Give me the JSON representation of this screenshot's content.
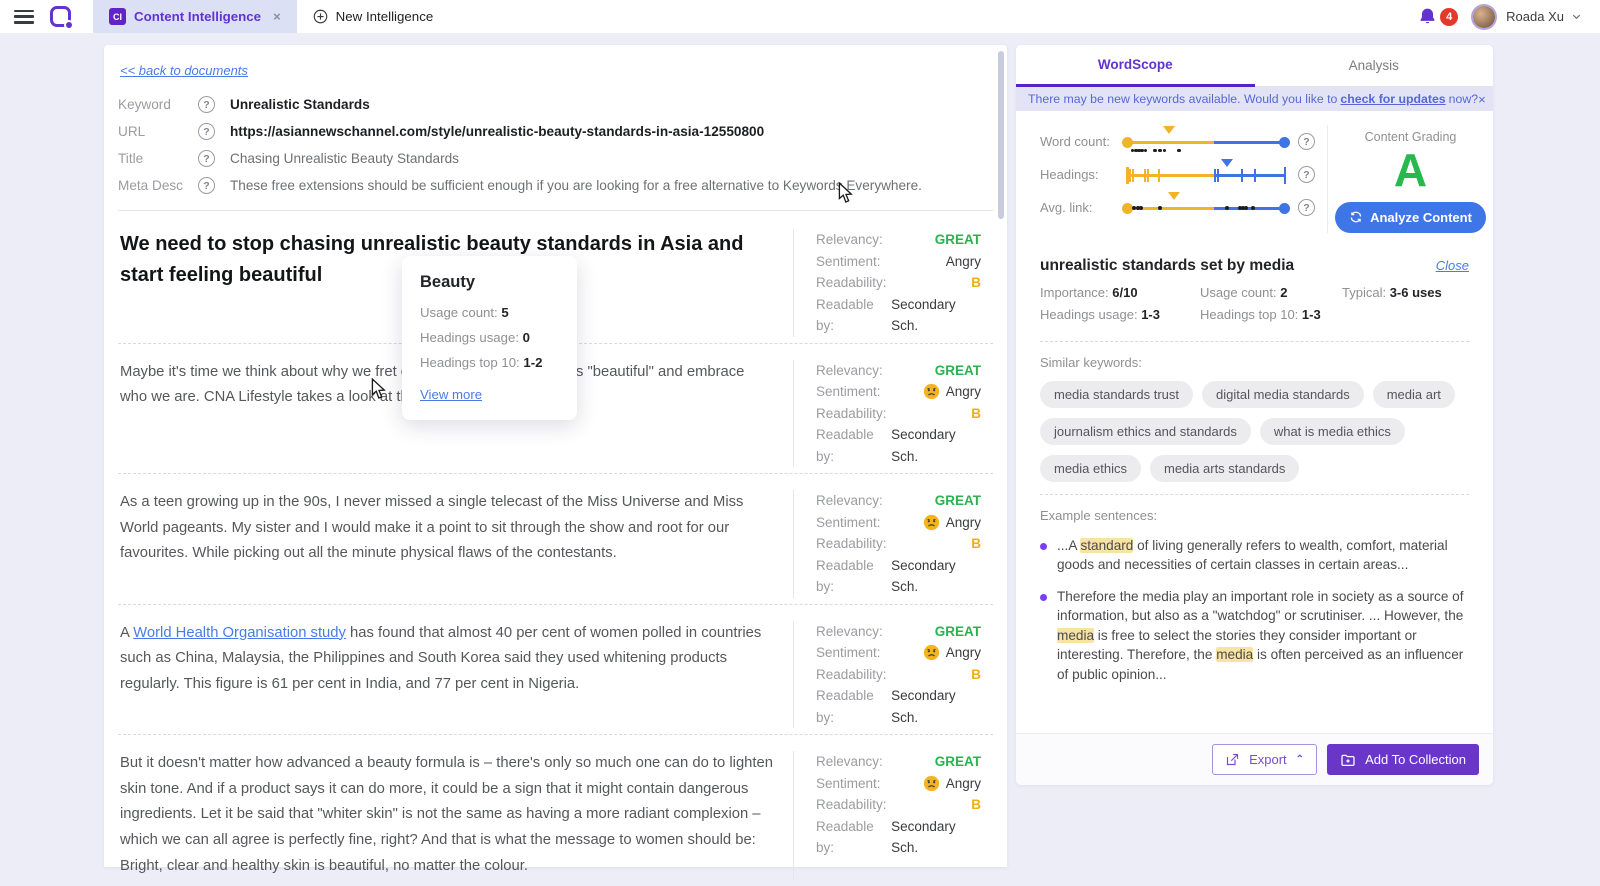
{
  "topbar": {
    "tab_ci_badge": "CI",
    "tab_ci_label": "Content Intelligence",
    "tab_ci_close": "×",
    "tab_new_label": "New Intelligence",
    "notification_count": "4",
    "user_name": "Roada Xu"
  },
  "document": {
    "back_link": "<< back to documents",
    "meta_rows": [
      {
        "label": "Keyword",
        "value": "Unrealistic Standards",
        "bold": true
      },
      {
        "label": "URL",
        "value": "https://asiannewschannel.com/style/unrealistic-beauty-standards-in-asia-12550800",
        "bold": true
      },
      {
        "label": "Title",
        "value": "Chasing Unrealistic Beauty Standards",
        "bold": false
      },
      {
        "label": "Meta Desc",
        "value": "These free extensions should be sufficient enough if you are looking for a free alternative to Keywords Everywhere.",
        "bold": false
      }
    ],
    "metric_labels": {
      "relevancy": "Relevancy:",
      "sentiment": "Sentiment:",
      "readability": "Readability:",
      "readable_by": "Readable by:"
    },
    "rows": [
      {
        "kind": "heading",
        "segments": [
          {
            "t": "We need to stop chasing unrealistic beauty standards in Asia and start feeling beautiful"
          }
        ],
        "metrics": {
          "relevancy": "GREAT",
          "sentiment": "Angry",
          "sentiment_emoji": false,
          "readability": "B",
          "readable_by": "Secondary Sch."
        }
      },
      {
        "kind": "paragraph",
        "segments": [
          {
            "t": "Maybe it's time we think about why we fret over what society deems as \"beautiful\" and embrace who we are. CNA Lifestyle takes a look at the "
          },
          {
            "t": "beauty",
            "hl": true
          },
          {
            "t": " rat race."
          }
        ],
        "metrics": {
          "relevancy": "GREAT",
          "sentiment": "Angry",
          "sentiment_emoji": true,
          "readability": "B",
          "readable_by": "Secondary Sch."
        }
      },
      {
        "kind": "paragraph",
        "segments": [
          {
            "t": "As a teen growing up in the 90s, I never missed a single telecast of the Miss Universe and Miss World pageants. My sister and I would make it a point to sit through the show and root for our favourites. While picking out all the minute physical flaws of the contestants."
          }
        ],
        "metrics": {
          "relevancy": "GREAT",
          "sentiment": "Angry",
          "sentiment_emoji": true,
          "readability": "B",
          "readable_by": "Secondary Sch."
        }
      },
      {
        "kind": "paragraph",
        "segments": [
          {
            "t": "A "
          },
          {
            "t": "World Health Organisation study",
            "link": true
          },
          {
            "t": " has found that almost 40 per cent of women polled in countries such as China, Malaysia, the Philippines and South Korea said they used whitening products regularly. This figure is 61 per cent in India, and 77 per cent in Nigeria."
          }
        ],
        "metrics": {
          "relevancy": "GREAT",
          "sentiment": "Angry",
          "sentiment_emoji": true,
          "readability": "B",
          "readable_by": "Secondary Sch."
        }
      },
      {
        "kind": "paragraph",
        "segments": [
          {
            "t": "But it doesn't matter how advanced a beauty formula is – there's only so much one can do to lighten skin tone. And if a product says it can do more, it could be a sign that it might contain dangerous ingredients. Let it be said that \"whiter skin\" is not the same as having a more radiant complexion – which we can all agree is perfectly fine, right? And that is what the message to women should be: Bright, clear and healthy skin is beautiful, no matter the colour."
          }
        ],
        "metrics": {
          "relevancy": "GREAT",
          "sentiment": "Angry",
          "sentiment_emoji": true,
          "readability": "B",
          "readable_by": "Secondary Sch."
        }
      }
    ]
  },
  "tooltip": {
    "title": "Beauty",
    "rows": [
      {
        "label": "Usage count: ",
        "value": "5"
      },
      {
        "label": "Headings usage: ",
        "value": "0"
      },
      {
        "label": "Headings top 10: ",
        "value": "1-2"
      }
    ],
    "link": "View more"
  },
  "wordscope": {
    "tab_active": "WordScope",
    "tab_inactive": "Analysis",
    "banner": {
      "text_before": "There may be new keywords available. Would you like to",
      "link": "check for updates",
      "text_after": "now?",
      "close": "×"
    },
    "sliders": [
      {
        "label": "Word count:",
        "marker_pct": 27,
        "marker_color": "gold",
        "split_pct": 55,
        "left_cap": "dot",
        "right_cap": "dot",
        "ticks": [],
        "line_dots": [],
        "under_dots": [
          3,
          5,
          7,
          9,
          11,
          17,
          20,
          23,
          32
        ]
      },
      {
        "label": "Headings:",
        "marker_pct": 63,
        "marker_color": "blue",
        "split_pct": 55,
        "left_cap": "tick",
        "right_cap": "tick",
        "ticks": [
          2,
          4,
          11,
          13,
          20,
          55,
          57,
          72,
          80
        ],
        "line_dots": [],
        "under_dots": []
      },
      {
        "label": "Avg. link:",
        "marker_pct": 30,
        "marker_color": "gold",
        "split_pct": 55,
        "left_cap": "dot",
        "right_cap": "dot",
        "ticks": [],
        "line_dots": [
          4,
          6,
          8,
          20,
          62,
          70,
          72,
          74,
          78
        ],
        "under_dots": []
      }
    ],
    "grading": {
      "label": "Content Grading",
      "grade": "A",
      "analyze_label": "Analyze Content"
    },
    "keyword": {
      "title": "unrealistic standards set by media",
      "close": "Close",
      "stats": [
        [
          {
            "label": "Importance: ",
            "value": "6/10",
            "col": "c1"
          },
          {
            "label": "Usage count: ",
            "value": "2",
            "col": "c2"
          },
          {
            "label": "Typical: ",
            "value": "3-6 uses",
            "col": "c3"
          }
        ],
        [
          {
            "label": "Headings usage: ",
            "value": "1-3",
            "col": "c1"
          },
          {
            "label": "Headings top 10: ",
            "value": "1-3",
            "col": "c2"
          }
        ]
      ],
      "similar_label": "Similar keywords:",
      "chips": [
        "media standards trust",
        "digital media standards",
        "media art",
        "journalism ethics and standards",
        "what is media ethics",
        "media ethics",
        "media arts standards"
      ],
      "examples_label": "Example sentences:",
      "examples": [
        [
          {
            "t": "...A "
          },
          {
            "t": "standard",
            "hl": true
          },
          {
            "t": " of living generally refers to wealth, comfort, material goods and necessities of certain classes in certain areas..."
          }
        ],
        [
          {
            "t": "Therefore the media play an important role in society as a source of information, but also as a \"watchdog\" or scrutiniser. ... However, the "
          },
          {
            "t": "media",
            "hl": true
          },
          {
            "t": " is free to select the stories they consider important or interesting. Therefore, the "
          },
          {
            "t": "media",
            "hl": true
          },
          {
            "t": " is often perceived as an influencer of public opinion..."
          }
        ]
      ]
    },
    "footer": {
      "export_label": "Export",
      "add_label": "Add To Collection"
    }
  }
}
